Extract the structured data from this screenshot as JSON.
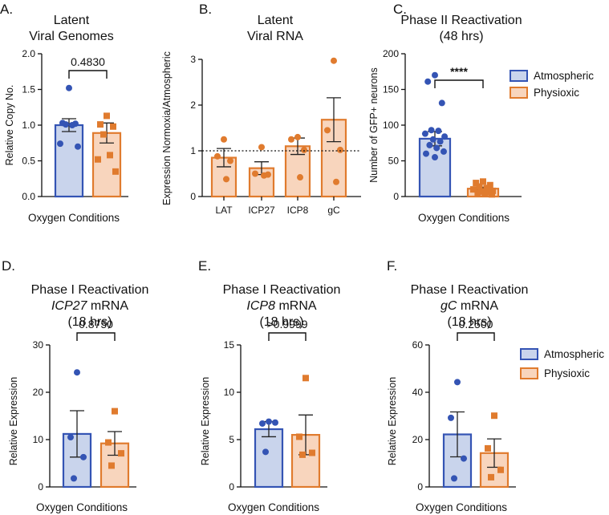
{
  "colors": {
    "blue": "#3454b4",
    "blue_fill": "#c9d4ec",
    "orange": "#e07b2e",
    "orange_fill": "#f8d5bd"
  },
  "legend": {
    "atmospheric": "Atmospheric",
    "physioxic": "Physioxic"
  },
  "chart_data": [
    {
      "id": "A",
      "type": "bar",
      "panel_label": "A.",
      "title_lines": [
        "Latent",
        "Viral Genomes"
      ],
      "ylabel": "Relative Copy  No.",
      "xlabel": "Oxygen Conditions",
      "ylim": [
        0,
        2.0
      ],
      "yticks": [
        0.0,
        0.5,
        1.0,
        1.5,
        2.0
      ],
      "ytick_labels": [
        "0.0",
        "0.5",
        "1.0",
        "1.5",
        "2.0"
      ],
      "series": [
        {
          "name": "Atmospheric",
          "value": 1.0,
          "sem": 0.09,
          "points": [
            1.52,
            1.03,
            1.02,
            1.01,
            1.0,
            0.74,
            0.7
          ]
        },
        {
          "name": "Physioxic",
          "value": 0.89,
          "sem": 0.14,
          "points": [
            1.13,
            1.01,
            0.98,
            0.87,
            0.58,
            0.52,
            0.35
          ]
        }
      ],
      "comparison": "0.4830"
    },
    {
      "id": "B",
      "type": "bar",
      "panel_label": "B.",
      "title_lines": [
        "Latent",
        "Viral RNA"
      ],
      "ylabel": "Expression Normoxia/Atmospheric",
      "xlabel": "",
      "ylim": [
        0,
        3
      ],
      "yticks": [
        0,
        1,
        2,
        3
      ],
      "ytick_labels": [
        "0",
        "1",
        "2",
        "3"
      ],
      "reference_line": 1,
      "categories": [
        "LAT",
        "ICP27",
        "ICP8",
        "gC"
      ],
      "values": [
        0.85,
        0.62,
        1.1,
        1.68
      ],
      "sem": [
        0.2,
        0.14,
        0.18,
        0.48
      ],
      "points": [
        [
          1.25,
          0.88,
          0.78,
          0.38
        ],
        [
          1.08,
          0.5,
          0.48,
          0.46
        ],
        [
          1.3,
          1.25,
          1.02,
          0.42
        ],
        [
          2.97,
          1.45,
          1.02,
          0.32
        ]
      ]
    },
    {
      "id": "C",
      "type": "bar",
      "panel_label": "C.",
      "title_lines": [
        "Phase II Reactivation",
        "(48 hrs)"
      ],
      "ylabel": "Number of GFP+ neurons",
      "xlabel": "Oxygen Conditions",
      "ylim": [
        0,
        200
      ],
      "yticks": [
        0,
        50,
        100,
        150,
        200
      ],
      "ytick_labels": [
        "0",
        "50",
        "100",
        "150",
        "200"
      ],
      "series": [
        {
          "name": "Atmospheric",
          "value": 81,
          "sem": 10,
          "points": [
            170,
            161,
            131,
            93,
            92,
            88,
            84,
            80,
            77,
            72,
            68,
            63,
            60,
            55
          ]
        },
        {
          "name": "Physioxic",
          "value": 11,
          "sem": 2,
          "points": [
            21,
            19,
            16,
            14,
            12,
            10,
            8,
            7,
            6,
            5,
            4,
            3
          ]
        }
      ],
      "comparison": "****"
    },
    {
      "id": "D",
      "type": "bar",
      "panel_label": "D.",
      "title_lines": [
        "Phase I Reactivation",
        "ICP27 mRNA",
        "(18 hrs)"
      ],
      "title_italic": "ICP27",
      "ylabel": "Relative Expression",
      "xlabel": "Oxygen Conditions",
      "ylim": [
        0,
        30
      ],
      "yticks": [
        0,
        10,
        20,
        30
      ],
      "ytick_labels": [
        "0",
        "10",
        "20",
        "30"
      ],
      "series": [
        {
          "name": "Atmospheric",
          "value": 11.2,
          "sem": 4.9,
          "points": [
            24.2,
            10.5,
            6.3,
            1.8
          ]
        },
        {
          "name": "Physioxic",
          "value": 9.2,
          "sem": 2.5,
          "points": [
            16.0,
            9.4,
            7.1,
            4.5
          ]
        }
      ],
      "comparison": "0.8750"
    },
    {
      "id": "E",
      "type": "bar",
      "panel_label": "E.",
      "title_lines": [
        "Phase I Reactivation",
        "ICP8 mRNA",
        "(18 hrs)"
      ],
      "title_italic": "ICP8",
      "ylabel": "Relative Expression",
      "xlabel": "Oxygen Conditions",
      "ylim": [
        0,
        15
      ],
      "yticks": [
        0,
        5,
        10,
        15
      ],
      "ytick_labels": [
        "0",
        "5",
        "10",
        "15"
      ],
      "series": [
        {
          "name": "Atmospheric",
          "value": 6.1,
          "sem": 0.8,
          "points": [
            6.9,
            6.7,
            6.8,
            3.7
          ]
        },
        {
          "name": "Physioxic",
          "value": 5.5,
          "sem": 2.1,
          "points": [
            11.5,
            5.3,
            3.6,
            3.4
          ]
        }
      ],
      "comparison": ">0.9999"
    },
    {
      "id": "F",
      "type": "bar",
      "panel_label": "F.",
      "title_lines": [
        "Phase I Reactivation",
        "gC mRNA",
        "(18 hrs)"
      ],
      "title_italic": "gC",
      "ylabel": "Relative Expression",
      "xlabel": "Oxygen Conditions",
      "ylim": [
        0,
        60
      ],
      "yticks": [
        0,
        20,
        40,
        60
      ],
      "ytick_labels": [
        "0",
        "20",
        "40",
        "60"
      ],
      "series": [
        {
          "name": "Atmospheric",
          "value": 22.2,
          "sem": 9.5,
          "points": [
            44.3,
            29.2,
            12.0,
            3.6
          ]
        },
        {
          "name": "Physioxic",
          "value": 14.3,
          "sem": 6.0,
          "points": [
            30.1,
            16.3,
            7.2,
            4.1
          ]
        }
      ],
      "comparison": "0.2500"
    }
  ]
}
